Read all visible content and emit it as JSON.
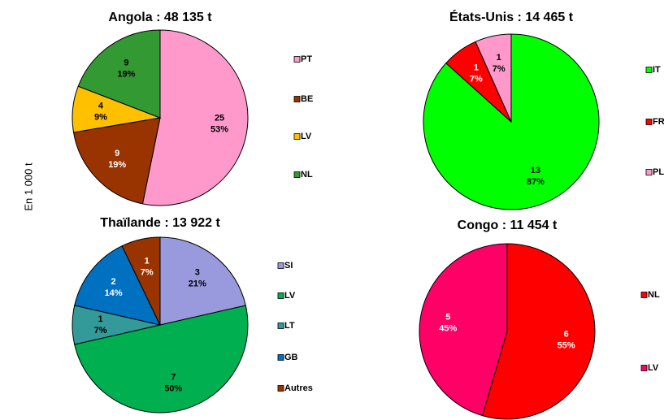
{
  "axis_label": "En 1 000 t",
  "chart_data": [
    {
      "type": "pie",
      "title": "Angola : 48 135 t",
      "categories": [
        "PT",
        "BE",
        "LV",
        "NL"
      ],
      "values": [
        25,
        9,
        4,
        9
      ],
      "percent_labels": [
        "53%",
        "19%",
        "9%",
        "19%"
      ],
      "colors": [
        "#ff99cc",
        "#993300",
        "#ffc000",
        "#339933"
      ]
    },
    {
      "type": "pie",
      "title": "États-Unis : 14 465 t",
      "categories": [
        "IT",
        "FR",
        "PL"
      ],
      "values": [
        13,
        1,
        1
      ],
      "percent_labels": [
        "87%",
        "7%",
        "7%"
      ],
      "colors": [
        "#00ff00",
        "#ff0000",
        "#ff99cc"
      ]
    },
    {
      "type": "pie",
      "title": "Thaïlande : 13 922 t",
      "categories": [
        "SI",
        "LV",
        "LT",
        "GB",
        "Autres"
      ],
      "values": [
        3,
        7,
        1,
        2,
        1
      ],
      "percent_labels": [
        "21%",
        "50%",
        "7%",
        "14%",
        "7%"
      ],
      "colors": [
        "#9999dd",
        "#00b050",
        "#339999",
        "#0070c0",
        "#993300"
      ]
    },
    {
      "type": "pie",
      "title": "Congo : 11 454 t",
      "categories": [
        "NL",
        "LV"
      ],
      "values": [
        6,
        5
      ],
      "percent_labels": [
        "55%",
        "45%"
      ],
      "colors": [
        "#ff0000",
        "#ff0066"
      ]
    }
  ]
}
